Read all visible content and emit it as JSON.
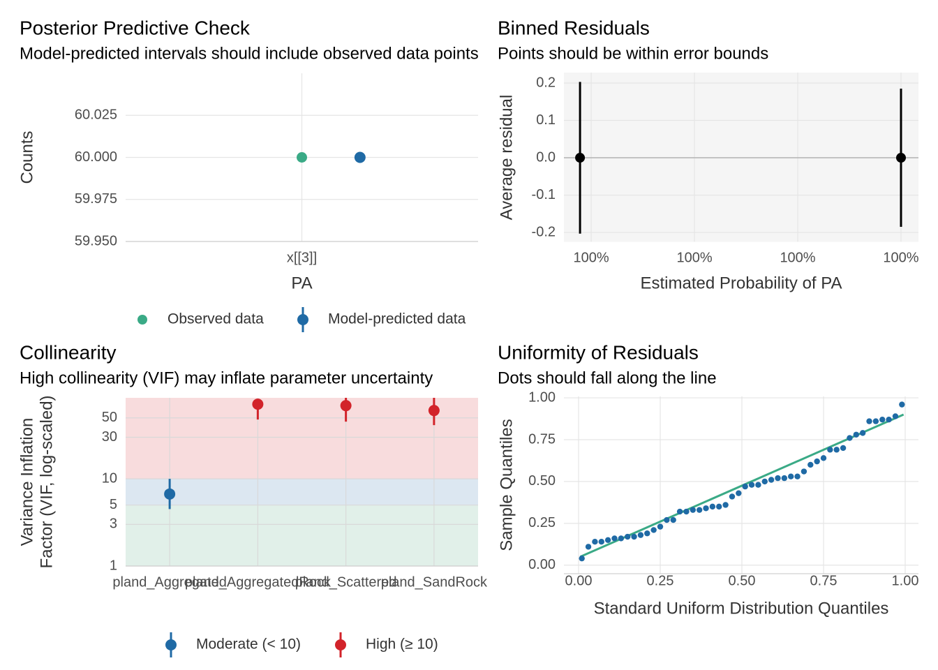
{
  "chart_data": [
    {
      "type": "dot",
      "title": "Posterior Predictive Check",
      "subtitle": "Model-predicted intervals should include observed data points",
      "x_label": "PA",
      "y_label": "Counts",
      "categories": [
        "x[[3]]"
      ],
      "series": [
        {
          "name": "Observed data",
          "color": "#3aaa86",
          "values": [
            60
          ]
        },
        {
          "name": "Model-predicted data",
          "color": "#1f6aa5",
          "values": [
            60
          ]
        }
      ],
      "ylim": [
        59.95,
        60.05
      ],
      "yticks": [
        {
          "value": 59.95,
          "label": "59.950"
        },
        {
          "value": 59.975,
          "label": "59.975"
        },
        {
          "value": 60,
          "label": "60.000"
        },
        {
          "value": 60.025,
          "label": "60.025"
        }
      ],
      "grid": true,
      "legend": "bottom"
    },
    {
      "type": "errorbar",
      "title": "Binned Residuals",
      "subtitle": "Points should be within error bounds",
      "x_label": "Estimated Probability of PA",
      "y_label": "Average residual",
      "x": [
        0.9995892,
        0.9999
      ],
      "values": [
        0,
        0
      ],
      "lower": [
        -0.203,
        -0.185
      ],
      "upper": [
        0.203,
        0.185
      ],
      "color": "#000000",
      "xlim": [
        0.9995736,
        0.9999169
      ],
      "xticks": [
        {
          "value": 0.9996,
          "label": "100%"
        },
        {
          "value": 0.9997,
          "label": "100%"
        },
        {
          "value": 0.9998,
          "label": "100%"
        },
        {
          "value": 0.9999,
          "label": "100%"
        }
      ],
      "ylim": [
        -0.226,
        0.228
      ],
      "yticks": [
        -0.2,
        -0.1,
        {
          "value": 0,
          "label": "0.0"
        },
        0.1,
        0.2
      ],
      "reference_y": 0,
      "grid": true,
      "panel_color": "#f5f5f5"
    },
    {
      "type": "pointrange",
      "title": "Collinearity",
      "subtitle": "High collinearity (VIF) may inflate parameter uncertainty",
      "y_label": [
        "Variance Inflation",
        "Factor (VIF, log-scaled)"
      ],
      "categories": [
        "pland_Aggregated",
        "pland_AggregatedRock",
        "pland_Scattered",
        "pland_SandRock"
      ],
      "series": [
        {
          "name": "Moderate (< 10)",
          "color": "#1f6aa5",
          "values": [
            6.7,
            null,
            null,
            null
          ],
          "lower": [
            4.5,
            null,
            null,
            null
          ],
          "upper": [
            10,
            null,
            null,
            null
          ]
        },
        {
          "name": "High (≥ 10)",
          "color": "#d2232a",
          "values": [
            null,
            71.8,
            69.2,
            60.8
          ],
          "lower": [
            null,
            47.9,
            45.3,
            41.3
          ],
          "upper": [
            null,
            82,
            88,
            90
          ]
        }
      ],
      "ylim": [
        1,
        85
      ],
      "log_scale": true,
      "yticks": [
        1,
        3,
        5,
        10,
        30,
        50
      ],
      "bands": [
        {
          "from": 1,
          "to": 5,
          "color": "#e1f0e9"
        },
        {
          "from": 5,
          "to": 10,
          "color": "#dce7f1"
        },
        {
          "from": 10,
          "to": 85,
          "color": "#f8dcdd"
        }
      ],
      "grid": true,
      "legend": "bottom"
    },
    {
      "type": "qq",
      "title": "Uniformity of Residuals",
      "subtitle": "Dots should fall along the line",
      "x_label": "Standard Uniform Distribution Quantiles",
      "y_label": "Sample Quantiles",
      "x": [
        0.01,
        0.03,
        0.05,
        0.07,
        0.09,
        0.11,
        0.13,
        0.15,
        0.17,
        0.19,
        0.21,
        0.23,
        0.25,
        0.27,
        0.29,
        0.31,
        0.33,
        0.35,
        0.37,
        0.39,
        0.41,
        0.43,
        0.45,
        0.47,
        0.49,
        0.51,
        0.53,
        0.55,
        0.57,
        0.59,
        0.61,
        0.63,
        0.65,
        0.67,
        0.69,
        0.71,
        0.73,
        0.75,
        0.77,
        0.79,
        0.81,
        0.83,
        0.85,
        0.87,
        0.89,
        0.91,
        0.93,
        0.95,
        0.97,
        0.99
      ],
      "values": [
        0.04,
        0.11,
        0.14,
        0.14,
        0.15,
        0.16,
        0.16,
        0.17,
        0.17,
        0.18,
        0.19,
        0.21,
        0.23,
        0.27,
        0.27,
        0.32,
        0.32,
        0.33,
        0.33,
        0.34,
        0.35,
        0.35,
        0.36,
        0.41,
        0.43,
        0.47,
        0.48,
        0.48,
        0.5,
        0.51,
        0.52,
        0.52,
        0.53,
        0.53,
        0.56,
        0.6,
        0.62,
        0.64,
        0.69,
        0.69,
        0.7,
        0.76,
        0.78,
        0.79,
        0.86,
        0.86,
        0.87,
        0.87,
        0.89,
        0.96
      ],
      "color": "#1f6aa5",
      "line": {
        "x": [
          0.005,
          0.995
        ],
        "y": [
          0.05,
          0.9
        ],
        "color": "#3aaa86"
      },
      "xlim": [
        -0.0449,
        1.0406
      ],
      "ylim": [
        -0.051,
        1.0085
      ],
      "xticks": [
        {
          "value": 0,
          "label": "0.00"
        },
        {
          "value": 0.25,
          "label": "0.25"
        },
        {
          "value": 0.5,
          "label": "0.50"
        },
        {
          "value": 0.75,
          "label": "0.75"
        },
        {
          "value": 1,
          "label": "1.00"
        }
      ],
      "yticks": [
        {
          "value": 0,
          "label": "0.00"
        },
        {
          "value": 0.25,
          "label": "0.25"
        },
        {
          "value": 0.5,
          "label": "0.50"
        },
        {
          "value": 0.75,
          "label": "0.75"
        },
        {
          "value": 1,
          "label": "1.00"
        }
      ],
      "grid": true
    }
  ]
}
